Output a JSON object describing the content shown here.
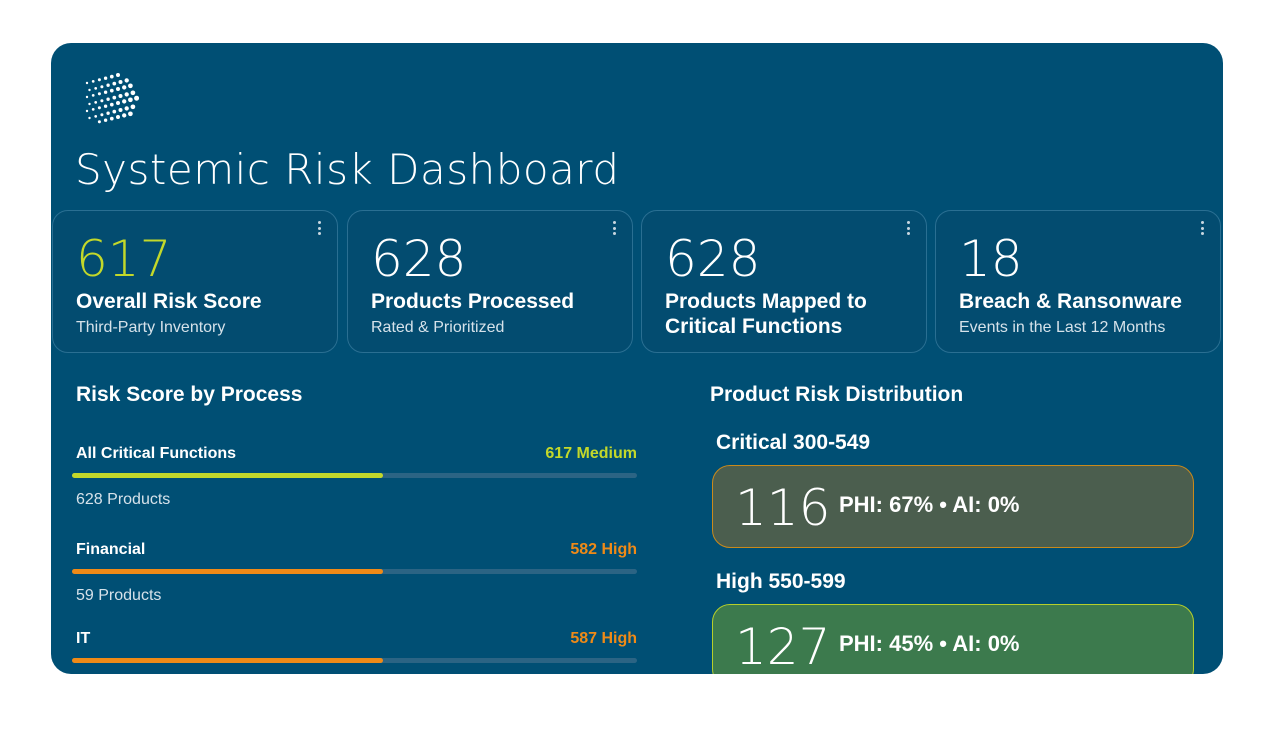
{
  "app": {
    "title": "Systemic Risk Dashboard"
  },
  "colors": {
    "panel": "#004f74",
    "accent_lime": "#c3d82a",
    "accent_orange": "#ef8a17",
    "critical_box": "#4b5e4e",
    "high_box": "#3c7a4d"
  },
  "cards": [
    {
      "value": "617",
      "label": "Overall Risk Score",
      "sub": "Third-Party Inventory",
      "menu_icon": "kebab-menu-icon"
    },
    {
      "value": "628",
      "label": "Products Processed",
      "sub": "Rated & Prioritized",
      "menu_icon": "kebab-menu-icon"
    },
    {
      "value": "628",
      "label": "Products Mapped to Critical Functions",
      "sub": "",
      "menu_icon": "kebab-menu-icon"
    },
    {
      "value": "18",
      "label": "Breach & Ransonware",
      "sub": "Events in the Last 12 Months",
      "menu_icon": "kebab-menu-icon"
    }
  ],
  "risk_by_process": {
    "title": "Risk Score by Process",
    "rows": [
      {
        "name": "All Critical Functions",
        "score": "617 Medium",
        "count": "628 Products",
        "fill_fraction": 0.55,
        "color": "#c3d82a"
      },
      {
        "name": "Financial",
        "score": "582 High",
        "count": "59 Products",
        "fill_fraction": 0.55,
        "color": "#ef8a17"
      },
      {
        "name": "IT",
        "score": "587 High",
        "count": "",
        "fill_fraction": 0.55,
        "color": "#ef8a17"
      }
    ]
  },
  "distribution": {
    "title": "Product Risk Distribution",
    "groups": [
      {
        "heading": "Critical 300-549",
        "count": "116",
        "meta": "PHI: 67% • AI: 0%",
        "bg": "#4b5e4e",
        "border": "#c98a1c"
      },
      {
        "heading": "High 550-599",
        "count": "127",
        "meta": "PHI: 45% • AI: 0%",
        "bg": "#3c7a4d",
        "border": "#b6cf2a"
      }
    ]
  }
}
